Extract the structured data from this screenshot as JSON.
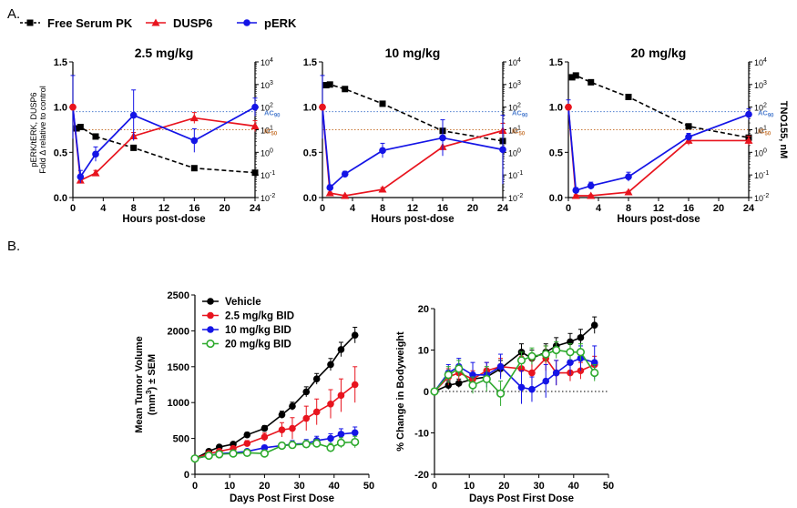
{
  "panel_labels": {
    "a": "A.",
    "b": "B."
  },
  "legend_a": [
    {
      "label": "Free Serum PK",
      "color": "#000000",
      "marker": "square",
      "dash": true
    },
    {
      "label": "DUSP6",
      "color": "#e8141e",
      "marker": "triangle",
      "dash": false
    },
    {
      "label": "pERK",
      "color": "#1414e6",
      "marker": "circle",
      "dash": false
    }
  ],
  "colors": {
    "pk": "#000000",
    "dusp6": "#e8141e",
    "perk": "#1414e6",
    "ac90": "#4f7fd0",
    "ic50": "#c97a3a",
    "vehicle": "#000000",
    "d25": "#e8141e",
    "d10": "#1414e6",
    "d20": "#2eaa2e"
  },
  "chart_data": [
    {
      "type": "line",
      "title": "2.5 mg/kg",
      "xlabel": "Hours post-dose",
      "ylabel": "pERK/tERK, DUSP6",
      "ylabel2": "Fold Δ relative to control",
      "xticks": [
        "0",
        "4",
        "8",
        "12",
        "16",
        "20",
        "24"
      ],
      "yticks": [
        "0.0",
        "0.5",
        "1.0",
        "1.5"
      ],
      "ylim": [
        0,
        1.5
      ],
      "xlim": [
        0,
        24
      ],
      "y2_log_range": [
        -2,
        4
      ],
      "ref_lines": [
        {
          "label": "AC",
          "sub": "90",
          "log_value": 1.8
        },
        {
          "label": "IC",
          "sub": "50",
          "log_value": 1.0
        }
      ],
      "series": [
        {
          "name": "Free Serum PK",
          "axis": "right_log",
          "x": [
            0.5,
            1,
            3,
            8,
            16,
            24
          ],
          "values": [
            1.06,
            1.12,
            0.7,
            0.2,
            -0.7,
            -0.9
          ]
        },
        {
          "name": "DUSP6",
          "axis": "left",
          "x": [
            0,
            1,
            3,
            8,
            16,
            24
          ],
          "values": [
            1.0,
            0.19,
            0.27,
            0.68,
            0.88,
            0.79
          ],
          "err": [
            0,
            0.02,
            0.03,
            0.04,
            0.06,
            0.06
          ]
        },
        {
          "name": "pERK",
          "axis": "left",
          "x": [
            0,
            1,
            3,
            8,
            16,
            24
          ],
          "values": [
            1.0,
            0.23,
            0.48,
            0.91,
            0.63,
            1.0
          ],
          "err": [
            0.35,
            0.07,
            0.08,
            0.28,
            0.13,
            0.1
          ]
        }
      ]
    },
    {
      "type": "line",
      "title": "10 mg/kg",
      "xlabel": "Hours post-dose",
      "xticks": [
        "0",
        "4",
        "8",
        "12",
        "16",
        "20",
        "24"
      ],
      "yticks": [
        "0.0",
        "0.5",
        "1.0",
        "1.5"
      ],
      "ylim": [
        0,
        1.5
      ],
      "xlim": [
        0,
        24
      ],
      "y2_log_range": [
        -2,
        4
      ],
      "ref_lines": [
        {
          "label": "AC",
          "sub": "90",
          "log_value": 1.8
        },
        {
          "label": "IC",
          "sub": "50",
          "log_value": 1.0
        }
      ],
      "series": [
        {
          "name": "Free Serum PK",
          "axis": "right_log",
          "x": [
            0.5,
            1,
            3,
            8,
            16,
            24
          ],
          "values": [
            2.97,
            3.0,
            2.8,
            2.15,
            0.95,
            0.5
          ]
        },
        {
          "name": "DUSP6",
          "axis": "left",
          "x": [
            0,
            1,
            3,
            8,
            16,
            24
          ],
          "values": [
            1.0,
            0.05,
            0.02,
            0.09,
            0.56,
            0.74
          ],
          "err": [
            0,
            0.01,
            0.01,
            0.02,
            0.08,
            0.08
          ]
        },
        {
          "name": "pERK",
          "axis": "left",
          "x": [
            0,
            1,
            3,
            8,
            16,
            24
          ],
          "values": [
            1.0,
            0.11,
            0.26,
            0.52,
            0.66,
            0.53
          ],
          "err": [
            0.35,
            0.03,
            0.03,
            0.08,
            0.2,
            0.38
          ]
        }
      ]
    },
    {
      "type": "line",
      "title": "20 mg/kg",
      "xlabel": "Hours post-dose",
      "ylabel_right": "TNO155, nM",
      "xticks": [
        "0",
        "4",
        "8",
        "12",
        "16",
        "20",
        "24"
      ],
      "yticks": [
        "0.0",
        "0.5",
        "1.0",
        "1.5"
      ],
      "y2ticks": [
        "10-2",
        "10-1",
        "100",
        "101",
        "102",
        "103",
        "104"
      ],
      "ylim": [
        0,
        1.5
      ],
      "xlim": [
        0,
        24
      ],
      "y2_log_range": [
        -2,
        4
      ],
      "ref_lines": [
        {
          "label": "AC",
          "sub": "90",
          "log_value": 1.8
        },
        {
          "label": "IC",
          "sub": "50",
          "log_value": 1.0
        }
      ],
      "series": [
        {
          "name": "Free Serum PK",
          "axis": "right_log",
          "x": [
            0.5,
            1,
            3,
            8,
            16,
            24
          ],
          "values": [
            3.32,
            3.4,
            3.1,
            2.45,
            1.15,
            0.65
          ]
        },
        {
          "name": "DUSP6",
          "axis": "left",
          "x": [
            0,
            1,
            3,
            8,
            16,
            24
          ],
          "values": [
            1.0,
            0.02,
            0.02,
            0.06,
            0.63,
            0.63
          ],
          "err": [
            0,
            0.01,
            0.01,
            0.01,
            0.05,
            0.05
          ]
        },
        {
          "name": "pERK",
          "axis": "left",
          "x": [
            0,
            1,
            3,
            8,
            16,
            24
          ],
          "values": [
            1.0,
            0.08,
            0.13,
            0.23,
            0.67,
            0.92
          ],
          "err": [
            0.08,
            0.03,
            0.04,
            0.05,
            0.04,
            0.06
          ]
        }
      ]
    },
    {
      "type": "line",
      "title": "",
      "xlabel": "Days Post First Dose",
      "ylabel": "Mean Tumor Volume",
      "ylabel2": "(mm3) ± SEM",
      "ylabel2_parts": {
        "a": "(mm",
        "sup": "3",
        "b": ") ± SEM"
      },
      "xticks": [
        "0",
        "10",
        "20",
        "30",
        "40",
        "50"
      ],
      "yticks": [
        "0",
        "500",
        "1000",
        "1500",
        "2000",
        "2500"
      ],
      "xlim": [
        0,
        50
      ],
      "ylim": [
        0,
        2500
      ],
      "legend": [
        "Vehicle",
        "2.5 mg/kg BID",
        "10 mg/kg BID",
        "20 mg/kg BID"
      ],
      "series": [
        {
          "name": "Vehicle",
          "x": [
            0,
            4,
            7,
            11,
            15,
            20,
            25,
            28,
            32,
            35,
            39,
            42,
            46
          ],
          "values": [
            220,
            320,
            380,
            420,
            550,
            640,
            830,
            950,
            1150,
            1330,
            1530,
            1740,
            1940
          ],
          "err": [
            20,
            25,
            30,
            30,
            35,
            40,
            50,
            55,
            70,
            75,
            85,
            100,
            110
          ]
        },
        {
          "name": "2.5 mg/kg BID",
          "x": [
            0,
            4,
            7,
            11,
            15,
            20,
            25,
            28,
            32,
            35,
            39,
            42,
            46
          ],
          "values": [
            220,
            290,
            320,
            360,
            430,
            520,
            620,
            640,
            780,
            870,
            980,
            1100,
            1250
          ],
          "err": [
            20,
            25,
            30,
            30,
            40,
            55,
            100,
            150,
            170,
            180,
            200,
            230,
            250
          ]
        },
        {
          "name": "10 mg/kg BID",
          "x": [
            0,
            4,
            7,
            11,
            15,
            20,
            25,
            28,
            32,
            35,
            39,
            42,
            46
          ],
          "values": [
            220,
            260,
            290,
            300,
            320,
            370,
            400,
            420,
            430,
            470,
            500,
            560,
            580
          ],
          "err": [
            20,
            20,
            25,
            25,
            30,
            35,
            40,
            50,
            55,
            60,
            65,
            75,
            80
          ]
        },
        {
          "name": "20 mg/kg BID",
          "x": [
            0,
            4,
            7,
            11,
            15,
            20,
            25,
            28,
            32,
            35,
            39,
            42,
            46
          ],
          "values": [
            220,
            260,
            280,
            290,
            300,
            290,
            400,
            410,
            420,
            430,
            370,
            440,
            450
          ],
          "err": [
            20,
            20,
            25,
            25,
            25,
            30,
            40,
            45,
            50,
            55,
            60,
            70,
            80
          ]
        }
      ]
    },
    {
      "type": "line",
      "title": "",
      "xlabel": "Days Post First Dose",
      "ylabel": "% Change in Bodyweight",
      "xticks": [
        "0",
        "10",
        "20",
        "30",
        "40",
        "50"
      ],
      "yticks": [
        "-20",
        "-10",
        "0",
        "10",
        "20"
      ],
      "xlim": [
        0,
        50
      ],
      "ylim": [
        -20,
        20
      ],
      "series": [
        {
          "name": "Vehicle",
          "x": [
            0,
            4,
            7,
            11,
            15,
            19,
            25,
            28,
            32,
            35,
            39,
            42,
            46
          ],
          "values": [
            0,
            1.5,
            2.0,
            3.0,
            3.5,
            5.5,
            9.5,
            8.0,
            9.5,
            11.0,
            12.0,
            13.0,
            16.0
          ],
          "err": [
            0,
            1,
            1,
            1,
            1,
            2,
            2,
            2,
            2,
            2,
            2,
            2,
            2
          ]
        },
        {
          "name": "2.5 mg/kg BID",
          "x": [
            0,
            4,
            7,
            11,
            15,
            19,
            25,
            28,
            32,
            35,
            39,
            42,
            46
          ],
          "values": [
            0,
            3.5,
            4.5,
            3.0,
            5.0,
            6.0,
            5.5,
            4.5,
            8.0,
            4.5,
            4.5,
            5.0,
            6.5
          ],
          "err": [
            0,
            2,
            2,
            2,
            2,
            2,
            3,
            3,
            3,
            3,
            2,
            2,
            2
          ]
        },
        {
          "name": "10 mg/kg BID",
          "x": [
            0,
            4,
            7,
            11,
            15,
            19,
            25,
            28,
            32,
            35,
            39,
            42,
            46
          ],
          "values": [
            0,
            4.5,
            6.0,
            4.0,
            4.0,
            6.0,
            1.0,
            0.5,
            2.5,
            4.5,
            7.0,
            8.0,
            7.0
          ],
          "err": [
            0,
            2,
            2,
            3,
            3,
            3,
            4,
            3,
            4,
            3,
            3,
            3,
            4
          ]
        },
        {
          "name": "20 mg/kg BID",
          "x": [
            0,
            4,
            7,
            11,
            15,
            19,
            25,
            28,
            32,
            35,
            39,
            42,
            46
          ],
          "values": [
            0,
            4.0,
            5.5,
            1.5,
            3.0,
            -0.5,
            7.5,
            8.5,
            9.0,
            10.0,
            9.5,
            9.5,
            4.5
          ],
          "err": [
            0,
            2,
            2,
            2,
            3,
            3,
            2,
            2,
            2,
            2,
            2,
            2,
            2
          ]
        }
      ]
    }
  ]
}
